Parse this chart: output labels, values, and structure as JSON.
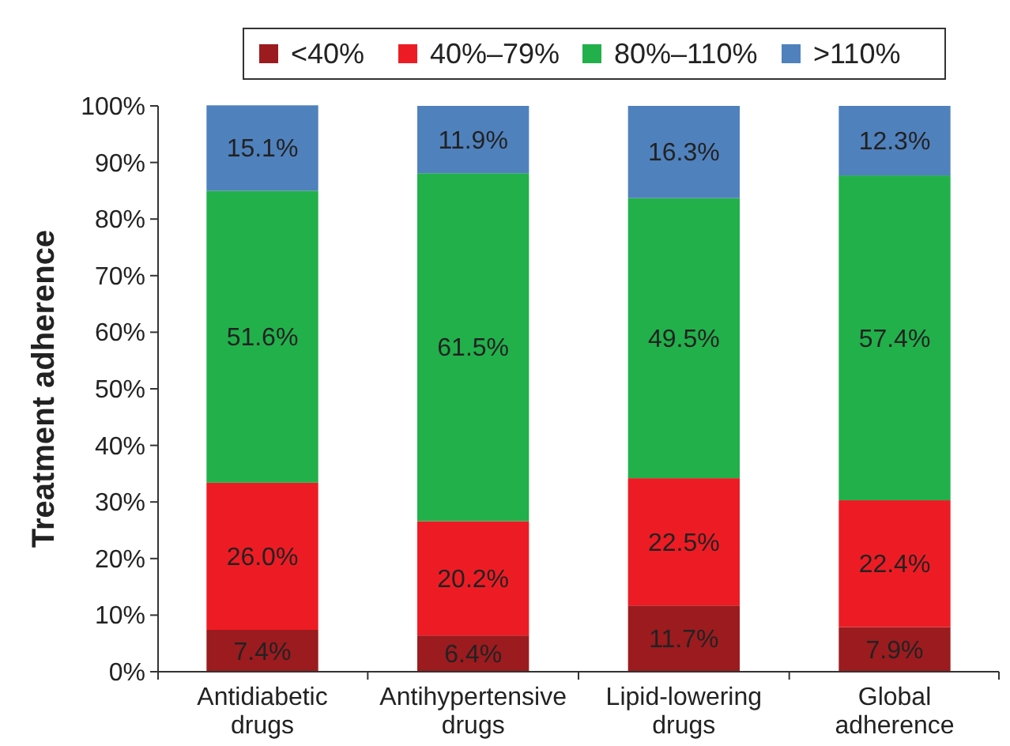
{
  "chart_data": {
    "type": "bar",
    "stacked": true,
    "ylabel": "Treatment adherence",
    "categories": [
      "Antidiabetic drugs",
      "Antihypertensive drugs",
      "Lipid-lowering drugs",
      "Global adherence"
    ],
    "series": [
      {
        "name": "<40%",
        "color": "#9b1b1f",
        "values": [
          7.4,
          6.4,
          11.7,
          7.9
        ],
        "value_labels": [
          "7.4%",
          "6.4%",
          "11.7%",
          "7.9%"
        ]
      },
      {
        "name": "40%–79%",
        "color": "#ed1c24",
        "values": [
          26.0,
          20.2,
          22.5,
          22.4
        ],
        "value_labels": [
          "26.0%",
          "20.2%",
          "22.5%",
          "22.4%"
        ]
      },
      {
        "name": "80%–110%",
        "color": "#22b04b",
        "values": [
          51.6,
          61.5,
          49.5,
          57.4
        ],
        "value_labels": [
          "51.6%",
          "61.5%",
          "49.5%",
          "57.4%"
        ]
      },
      {
        "name": ">110%",
        "color": "#4f81bd",
        "values": [
          15.1,
          11.9,
          16.3,
          12.3
        ],
        "value_labels": [
          "15.1%",
          "11.9%",
          "16.3%",
          "12.3%"
        ]
      }
    ],
    "ylim": [
      0,
      100
    ],
    "yticks": [
      {
        "value": 0,
        "label": "0%"
      },
      {
        "value": 10,
        "label": "10%"
      },
      {
        "value": 20,
        "label": "20%"
      },
      {
        "value": 30,
        "label": "30%"
      },
      {
        "value": 40,
        "label": "40%"
      },
      {
        "value": 50,
        "label": "50%"
      },
      {
        "value": 60,
        "label": "60%"
      },
      {
        "value": 70,
        "label": "70%"
      },
      {
        "value": 80,
        "label": "80%"
      },
      {
        "value": 90,
        "label": "90%"
      },
      {
        "value": 100,
        "label": "100%"
      }
    ],
    "legend": "top",
    "grid": false
  }
}
